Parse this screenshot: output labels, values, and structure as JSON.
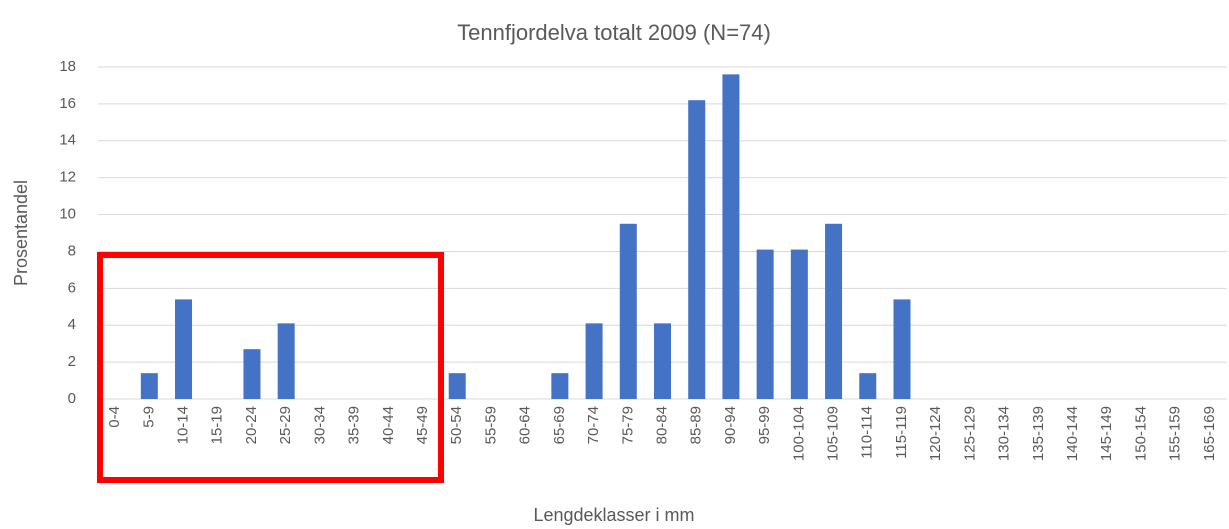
{
  "chart_data": {
    "type": "bar",
    "title": "Tennfjordelva totalt 2009 (N=74)",
    "x_label": "Lengdeklasser i mm",
    "y_label": "Prosentandel",
    "categories": [
      "0-4",
      "5-9",
      "10-14",
      "15-19",
      "20-24",
      "25-29",
      "30-34",
      "35-39",
      "40-44",
      "45-49",
      "50-54",
      "55-59",
      "60-64",
      "65-69",
      "70-74",
      "75-79",
      "80-84",
      "85-89",
      "90-94",
      "95-99",
      "100-104",
      "105-109",
      "110-114",
      "115-119",
      "120-124",
      "125-129",
      "130-134",
      "135-139",
      "140-144",
      "145-149",
      "150-154",
      "155-159",
      "165-169"
    ],
    "values": [
      0,
      1.4,
      5.4,
      0,
      2.7,
      4.1,
      0,
      0,
      0,
      0,
      1.4,
      0,
      0,
      1.4,
      4.1,
      9.5,
      4.1,
      16.2,
      17.6,
      8.1,
      8.1,
      9.5,
      1.4,
      5.4,
      0,
      0,
      0,
      0,
      0,
      0,
      0,
      0,
      0
    ],
    "color": "#4472c4",
    "ylim": [
      0,
      18
    ],
    "yticks": [
      0,
      2,
      4,
      6,
      8,
      10,
      12,
      14,
      16,
      18
    ],
    "grid": true
  }
}
